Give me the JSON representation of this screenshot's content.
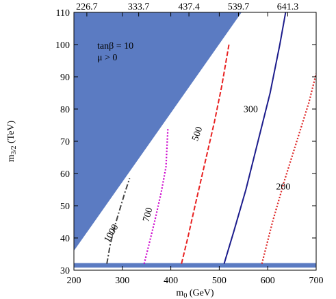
{
  "chart_data": {
    "type": "line",
    "xlabel": "m",
    "xlabel_sub": "0",
    "xlabel_unit": " (GeV)",
    "ylabel": "m",
    "ylabel_sub": "3/2",
    "ylabel_unit": " (TeV)",
    "xlim": [
      200,
      700
    ],
    "ylim": [
      30,
      110
    ],
    "x_ticks": [
      200,
      300,
      400,
      500,
      600,
      700
    ],
    "y_ticks": [
      30,
      40,
      50,
      60,
      70,
      80,
      90,
      100,
      110
    ],
    "top_ticks": [
      {
        "x": 226.7,
        "label": "226.7"
      },
      {
        "x": 333.7,
        "label": "333.7"
      },
      {
        "x": 437.4,
        "label": "437.4"
      },
      {
        "x": 539.7,
        "label": "539.7"
      },
      {
        "x": 641.3,
        "label": "641.3"
      }
    ],
    "annotations": [
      "tanβ = 10",
      "μ > 0"
    ],
    "excluded_regions": [
      {
        "color": "#5b7bc2",
        "points": [
          [
            200,
            110
          ],
          [
            546,
            110
          ],
          [
            200,
            36
          ]
        ]
      },
      {
        "color": "#5b7bc2",
        "points": [
          [
            200,
            30.8
          ],
          [
            700,
            30.8
          ],
          [
            700,
            32.2
          ],
          [
            200,
            32.2
          ]
        ]
      }
    ],
    "series": [
      {
        "name": "1000",
        "color": "#444444",
        "style": "dashdot",
        "x": [
          268,
          275,
          285,
          295,
          305,
          315
        ],
        "y": [
          32,
          38,
          44,
          49,
          54,
          58.5
        ]
      },
      {
        "name": "700",
        "color": "#cc00cc",
        "style": "dotted",
        "x": [
          345,
          355,
          368,
          380,
          390,
          394
        ],
        "y": [
          32,
          38,
          46,
          54,
          62,
          74
        ]
      },
      {
        "name": "500",
        "color": "#e82020",
        "style": "dashed",
        "x": [
          422,
          435,
          450,
          470,
          490,
          505,
          520
        ],
        "y": [
          32,
          40,
          50,
          63,
          76,
          87,
          100
        ]
      },
      {
        "name": "300",
        "color": "#1c1c8c",
        "style": "solid",
        "x": [
          510,
          530,
          555,
          580,
          605,
          625,
          637
        ],
        "y": [
          32,
          42,
          55,
          70,
          85,
          100,
          110
        ]
      },
      {
        "name": "200",
        "color": "#dd2222",
        "style": "dotted",
        "x": [
          588,
          610,
          635,
          660,
          685,
          700
        ],
        "y": [
          32,
          45,
          58,
          70,
          82,
          91
        ]
      }
    ],
    "contour_labels": [
      {
        "text": "1000",
        "x": 282,
        "y": 41,
        "angle": -60
      },
      {
        "text": "700",
        "x": 358,
        "y": 47,
        "angle": -75
      },
      {
        "text": "500",
        "x": 460,
        "y": 72,
        "angle": -70
      },
      {
        "text": "300",
        "x": 565,
        "y": 79,
        "angle": 0
      },
      {
        "text": "200",
        "x": 632,
        "y": 55,
        "angle": 0
      }
    ]
  }
}
